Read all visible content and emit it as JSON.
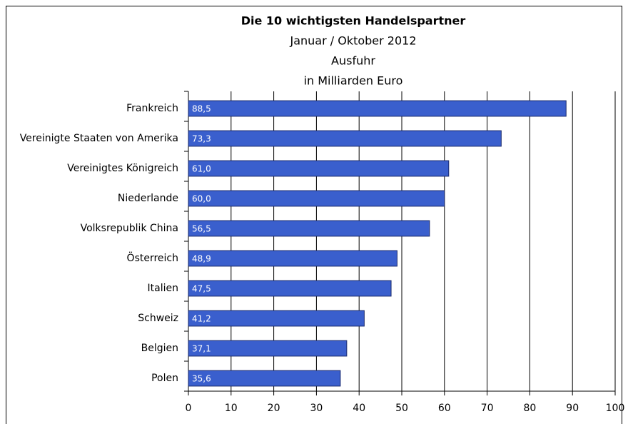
{
  "chart_data": {
    "type": "barh",
    "title": "Die 10 wichtigsten Handelspartner",
    "subtitle": [
      "Januar / Oktober 2012",
      "Ausfuhr",
      "in Milliarden Euro"
    ],
    "categories": [
      "Frankreich",
      "Vereinigte Staaten von Amerika",
      "Vereinigtes Königreich",
      "Niederlande",
      "Volksrepublik China",
      "Österreich",
      "Italien",
      "Schweiz",
      "Belgien",
      "Polen"
    ],
    "values": [
      88.5,
      73.3,
      61.0,
      60.0,
      56.5,
      48.9,
      47.5,
      41.2,
      37.1,
      35.6
    ],
    "value_labels": [
      "88,5",
      "73,3",
      "61,0",
      "60,0",
      "56,5",
      "48,9",
      "47,5",
      "41,2",
      "37,1",
      "35,6"
    ],
    "color": "#3a5fcd",
    "xlim": [
      0,
      100
    ],
    "xticks": [
      0,
      10,
      20,
      30,
      40,
      50,
      60,
      70,
      80,
      90,
      100
    ],
    "grid": true
  }
}
